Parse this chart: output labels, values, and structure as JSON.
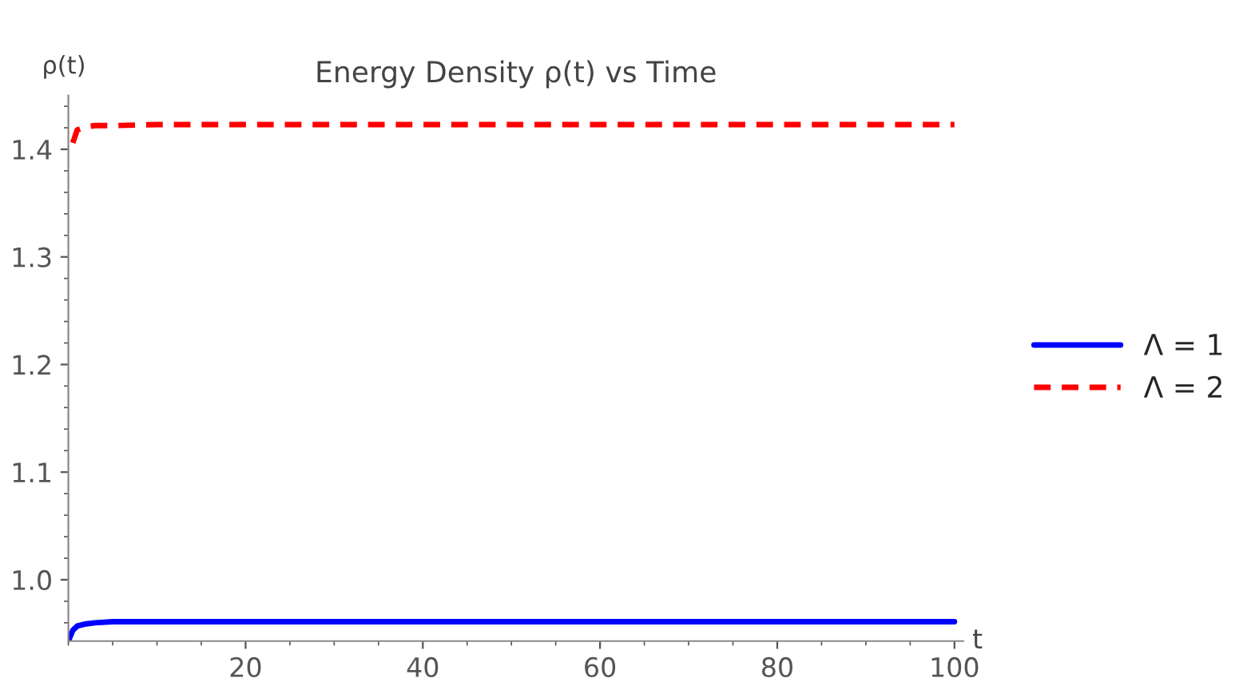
{
  "chart_data": {
    "type": "line",
    "title": "Energy Density ρ(t) vs Time",
    "xlabel": "t",
    "ylabel": "ρ(t)",
    "x": [
      0,
      0.5,
      1,
      2,
      3,
      5,
      10,
      30,
      60,
      100
    ],
    "series": [
      {
        "name": "Λ = 1",
        "color": "#0000ff",
        "line_style": "solid",
        "values": [
          0.943,
          0.953,
          0.957,
          0.959,
          0.96,
          0.961,
          0.961,
          0.961,
          0.961,
          0.961
        ]
      },
      {
        "name": "Λ = 2",
        "color": "#ff0000",
        "line_style": "dashed",
        "values": [
          null,
          1.406,
          1.418,
          1.421,
          1.422,
          1.422,
          1.423,
          1.423,
          1.423,
          1.423
        ]
      }
    ],
    "xlim": [
      0,
      101
    ],
    "ylim": [
      0.943,
      1.45
    ],
    "xticks": [
      20,
      40,
      60,
      80,
      100
    ],
    "yticks": [
      {
        "value": 1.0,
        "label": "1.0"
      },
      1.1,
      1.2,
      1.3,
      1.4
    ],
    "grid": false,
    "legend": "right"
  }
}
